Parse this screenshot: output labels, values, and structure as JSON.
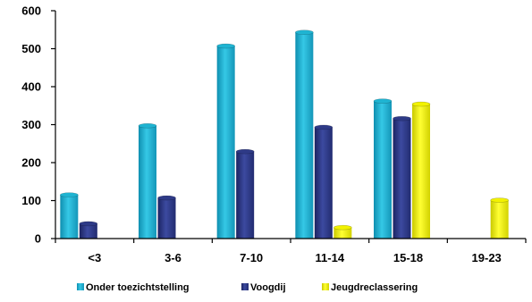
{
  "chart_data": {
    "type": "bar",
    "categories": [
      "<3",
      "3-6",
      "7-10",
      "11-14",
      "15-18",
      "19-23"
    ],
    "series": [
      {
        "name": "Onder toezichtstelling",
        "color": "#1fb4d2",
        "values": [
          115,
          297,
          507,
          543,
          362,
          0
        ]
      },
      {
        "name": "Voogdij",
        "color": "#2e3a87",
        "values": [
          39,
          107,
          229,
          293,
          316,
          0
        ]
      },
      {
        "name": "Jeugdreclassering",
        "color": "#f2f200",
        "values": [
          0,
          0,
          0,
          29,
          354,
          101
        ]
      }
    ],
    "ylim": [
      0,
      600
    ],
    "yticks": [
      0,
      100,
      200,
      300,
      400,
      500,
      600
    ],
    "legend_position": "bottom",
    "grid": false
  }
}
